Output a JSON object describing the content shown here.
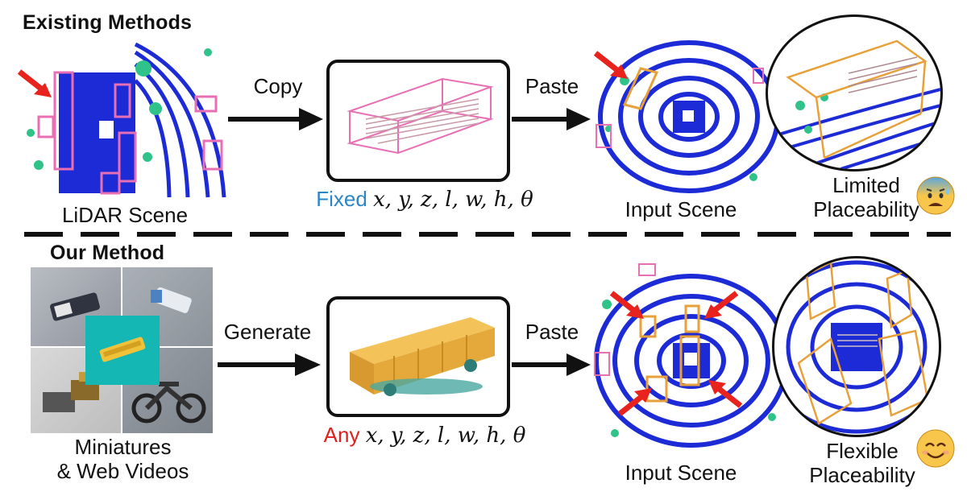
{
  "top": {
    "section_title": "Existing Methods",
    "scene_label": "LiDAR Scene",
    "step1_label": "Copy",
    "step2_label": "Paste",
    "caption_prefix": "Fixed",
    "caption_vars": "x, y, z, l, w, h, θ",
    "input_label": "Input Scene",
    "result_label_line1": "Limited",
    "result_label_line2": "Placeability",
    "emoji_name": "anxious-face-with-sweat-icon",
    "prefix_color": "#2a86c8"
  },
  "bottom": {
    "section_title": "Our Method",
    "source_label_line1": "Miniatures",
    "source_label_line2": "& Web Videos",
    "step1_label": "Generate",
    "step2_label": "Paste",
    "caption_prefix": "Any",
    "caption_vars": "x, y, z, l, w, h, θ",
    "input_label": "Input Scene",
    "result_label_line1": "Flexible",
    "result_label_line2": "Placeability",
    "emoji_name": "smiling-face-icon",
    "prefix_color": "#e0201c"
  },
  "colors": {
    "lidar_blue": "#1c2bd6",
    "lidar_green": "#2fc38a",
    "box_pink": "#e86fb3",
    "box_orange": "#e8a13a",
    "arrow_red": "#e8221c"
  }
}
